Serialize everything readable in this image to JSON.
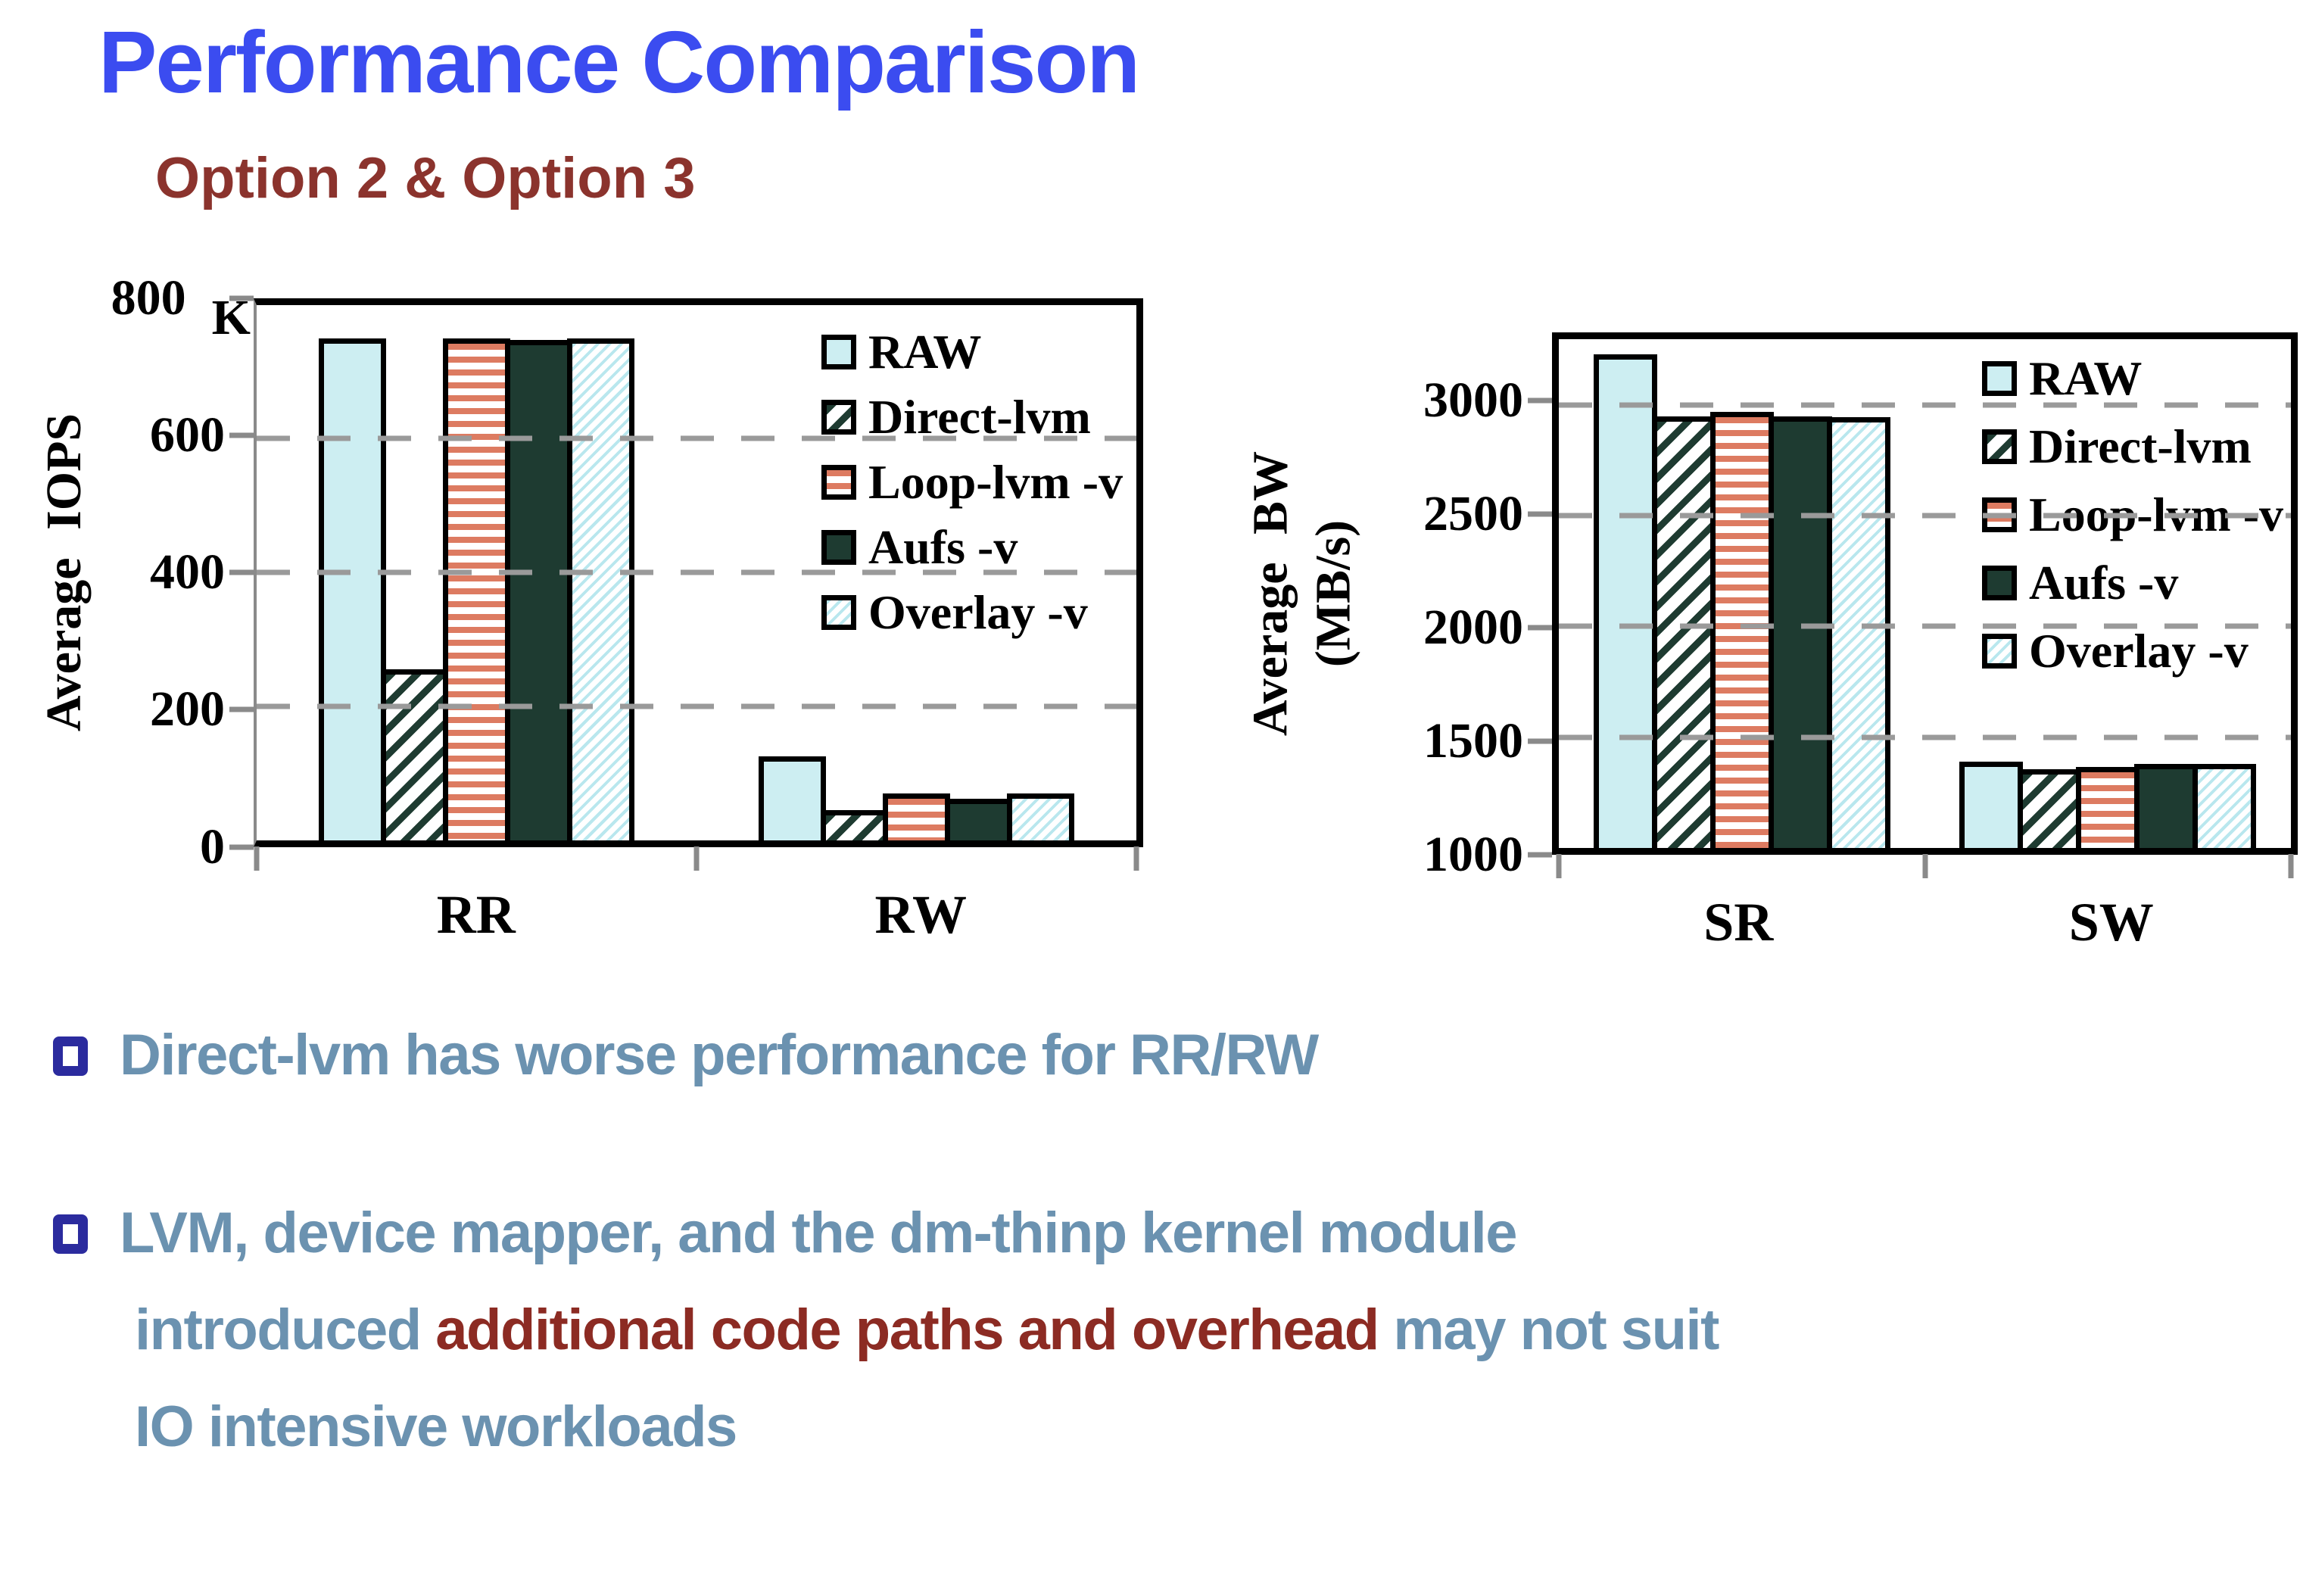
{
  "title": "Performance Comparison",
  "subtitle": "Option 2 & Option 3",
  "colors": {
    "title": "#3b4cf0",
    "subred": "#8b332d",
    "body": "#6b92b0",
    "em": "#8c2b23",
    "bullet": "#2b2b9e",
    "raw": "#cdeef2",
    "dark": "#1e3b31",
    "salmon": "#dd7b61",
    "light": "#b9e7ee",
    "grid": "#9a9a9a",
    "axis": "#8a8a8a"
  },
  "chart_data": [
    {
      "id": "iops",
      "type": "bar",
      "title": "",
      "xlabel": "",
      "ylabel": "Average IOPS",
      "y_axis_title_lines": [
        "Average IOPS"
      ],
      "y_unit_suffix": "K",
      "ylim": [
        0,
        800
      ],
      "yticks": [
        0,
        200,
        400,
        600,
        800
      ],
      "gridlines": [
        200,
        400,
        600
      ],
      "grid": true,
      "legend_position": "top-right inside",
      "categories": [
        "RR",
        "RW"
      ],
      "series": [
        {
          "name": "RAW",
          "pattern": "raw",
          "values": [
            750,
            125
          ]
        },
        {
          "name": "Direct-lvm",
          "pattern": "hatch-dark",
          "values": [
            255,
            45
          ]
        },
        {
          "name": "Loop-lvm -v",
          "pattern": "hstripe",
          "values": [
            750,
            70
          ]
        },
        {
          "name": "Aufs -v",
          "pattern": "solid-dark",
          "values": [
            748,
            62
          ]
        },
        {
          "name": "Overlay -v",
          "pattern": "hatch-light",
          "values": [
            750,
            70
          ]
        }
      ]
    },
    {
      "id": "bw",
      "type": "bar",
      "title": "",
      "xlabel": "",
      "ylabel": "Average BW (MB/s)",
      "y_axis_title_lines": [
        "Average BW",
        "(MB/s)"
      ],
      "y_unit_suffix": "",
      "ylim": [
        1000,
        3300
      ],
      "yticks": [
        1000,
        1500,
        2000,
        2500,
        3000
      ],
      "gridlines": [
        1500,
        2000,
        2500,
        3000
      ],
      "grid": true,
      "legend_position": "top-right inside",
      "categories": [
        "SR",
        "SW"
      ],
      "series": [
        {
          "name": "RAW",
          "pattern": "raw",
          "values": [
            3230,
            1390
          ]
        },
        {
          "name": "Direct-lvm",
          "pattern": "hatch-dark",
          "values": [
            2950,
            1355
          ]
        },
        {
          "name": "Loop-lvm -v",
          "pattern": "hstripe",
          "values": [
            2970,
            1365
          ]
        },
        {
          "name": "Aufs -v",
          "pattern": "solid-dark",
          "values": [
            2950,
            1380
          ]
        },
        {
          "name": "Overlay -v",
          "pattern": "hatch-light",
          "values": [
            2945,
            1380
          ]
        }
      ]
    }
  ],
  "bullets": [
    {
      "segments": [
        {
          "text": "Direct-lvm has worse performance for RR/RW",
          "color": "body"
        }
      ]
    },
    {
      "segments": [
        {
          "text": "LVM, device mapper, and the dm-thinp kernel module\nintroduced ",
          "color": "body"
        },
        {
          "text": "additional code paths and overhead",
          "color": "em"
        },
        {
          "text": " may not suit\nIO intensive workloads",
          "color": "body"
        }
      ]
    }
  ]
}
